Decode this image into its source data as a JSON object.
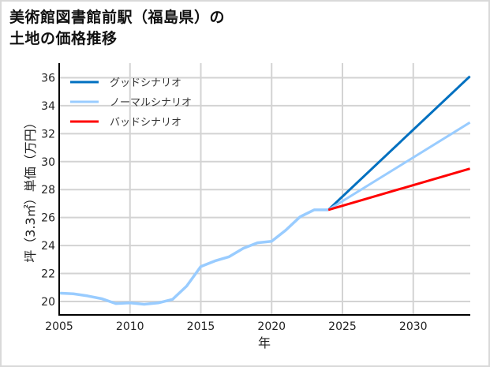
{
  "title_lines": [
    "美術館図書館前駅（福島県）の",
    "土地の価格推移"
  ],
  "chart_data": {
    "type": "line",
    "title": "美術館図書館前駅（福島県）の土地の価格推移",
    "xlabel": "年",
    "ylabel": "坪（3.3㎡）単価（万円）",
    "xlim": [
      2005,
      2034
    ],
    "ylim": [
      19,
      37
    ],
    "xticks": [
      2005,
      2010,
      2015,
      2020,
      2025,
      2030
    ],
    "yticks": [
      20,
      22,
      24,
      26,
      28,
      30,
      32,
      34,
      36
    ],
    "grid": true,
    "legend_position": "upper left",
    "historical": {
      "name": "ノーマルシナリオ",
      "x": [
        2005,
        2006,
        2007,
        2008,
        2009,
        2010,
        2011,
        2012,
        2013,
        2014,
        2015,
        2016,
        2017,
        2018,
        2019,
        2020,
        2021,
        2022,
        2023,
        2024
      ],
      "y": [
        20.6,
        20.55,
        20.4,
        20.2,
        19.85,
        19.9,
        19.8,
        19.9,
        20.15,
        21.1,
        22.5,
        22.9,
        23.2,
        23.8,
        24.2,
        24.3,
        25.1,
        26.05,
        26.55,
        26.55
      ]
    },
    "series": [
      {
        "name": "グッドシナリオ",
        "color": "#0070c0",
        "x": [
          2024,
          2034
        ],
        "y": [
          26.55,
          36.1
        ]
      },
      {
        "name": "ノーマルシナリオ",
        "color": "#99ccff",
        "x": [
          2024,
          2034
        ],
        "y": [
          26.55,
          32.8
        ]
      },
      {
        "name": "バッドシナリオ",
        "color": "#ff0000",
        "x": [
          2024,
          2034
        ],
        "y": [
          26.55,
          29.5
        ]
      }
    ]
  }
}
